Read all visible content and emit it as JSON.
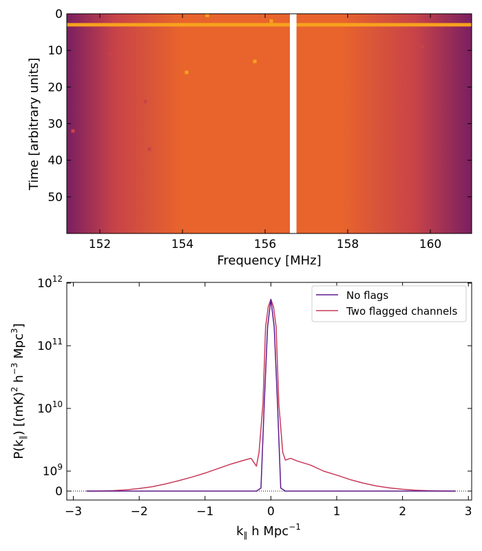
{
  "chart_data": [
    {
      "type": "heatmap",
      "xlabel": "Frequency [MHz]",
      "ylabel": "Time [arbitrary units]",
      "xlim": [
        151.2,
        161.0
      ],
      "ylim": [
        60,
        0
      ],
      "xticks": [
        "152",
        "154",
        "156",
        "158",
        "160"
      ],
      "yticks": [
        "0",
        "10",
        "20",
        "30",
        "40",
        "50"
      ],
      "y_inverted": true,
      "colormap": "inferno",
      "colors": {
        "edge": "#7a1f61",
        "mid": "#c84348",
        "center": "#e8642c",
        "bright": "#f7a21d",
        "flag": "#ffffff"
      },
      "flagged_channel_mhz": [
        156.6,
        156.76
      ],
      "bright_row_time": 3,
      "hot_pixels": [
        {
          "freq": 154.6,
          "time": 0.0
        },
        {
          "freq": 156.15,
          "time": 2.0
        },
        {
          "freq": 152.25,
          "time": 11.0
        },
        {
          "freq": 159.8,
          "time": 9.0
        },
        {
          "freq": 155.75,
          "time": 13.0
        },
        {
          "freq": 154.1,
          "time": 16.0
        },
        {
          "freq": 153.1,
          "time": 24.0
        },
        {
          "freq": 151.35,
          "time": 32.0
        },
        {
          "freq": 153.2,
          "time": 37.0
        }
      ]
    },
    {
      "type": "line",
      "xlabel": "k",
      "xlabel_sub": "∥",
      "xlabel_rest": " h Mpc",
      "xlabel_sup": "−1",
      "ylabel_parts": [
        "P(k",
        "∥",
        ") [(mK)",
        "2",
        " h",
        "−3",
        " Mpc",
        "3",
        "]"
      ],
      "xlim": [
        -3.1,
        3.05
      ],
      "xticks": [
        "−3",
        "−2",
        "−1",
        "0",
        "1",
        "2",
        "3"
      ],
      "yscale": "symlog",
      "yticks": [
        {
          "base": "0",
          "exp": ""
        },
        {
          "base": "10",
          "exp": "9"
        },
        {
          "base": "10",
          "exp": "10"
        },
        {
          "base": "10",
          "exp": "11"
        },
        {
          "base": "10",
          "exp": "12"
        }
      ],
      "legend_position": "top-right",
      "series": [
        {
          "name": "No flags",
          "color": "#5c1a8c",
          "x": [
            -2.8,
            -2.0,
            -1.0,
            -0.3,
            -0.22,
            -0.15,
            -0.1,
            -0.05,
            0.0,
            0.05,
            0.1,
            0.15,
            0.22,
            0.3,
            1.0,
            2.0,
            2.8
          ],
          "y": [
            0,
            0,
            0,
            0,
            0,
            150000000.0,
            12000000000.0,
            200000000000.0,
            550000000000.0,
            200000000000.0,
            12000000000.0,
            150000000.0,
            0,
            0,
            0,
            0,
            0
          ]
        },
        {
          "name": "Two flagged channels",
          "color": "#c73a5a",
          "x": [
            -2.8,
            -2.6,
            -2.4,
            -2.2,
            -2.0,
            -1.8,
            -1.6,
            -1.4,
            -1.2,
            -1.0,
            -0.8,
            -0.6,
            -0.4,
            -0.3,
            -0.22,
            -0.18,
            -0.12,
            -0.08,
            -0.04,
            0.0,
            0.04,
            0.08,
            0.12,
            0.18,
            0.22,
            0.3,
            0.4,
            0.6,
            0.8,
            1.0,
            1.2,
            1.4,
            1.6,
            1.8,
            2.0,
            2.2,
            2.4,
            2.6,
            2.8
          ],
          "y": [
            0,
            3000000.0,
            20000000.0,
            60000000.0,
            130000000.0,
            220000000.0,
            360000000.0,
            520000000.0,
            700000000.0,
            900000000.0,
            1100000000.0,
            1300000000.0,
            1500000000.0,
            1600000000.0,
            1200000000.0,
            2000000000.0,
            12000000000.0,
            200000000000.0,
            420000000000.0,
            550000000000.0,
            420000000000.0,
            200000000000.0,
            12000000000.0,
            2000000000.0,
            1500000000.0,
            1600000000.0,
            1450000000.0,
            1250000000.0,
            1000000000.0,
            800000000.0,
            580000000.0,
            400000000.0,
            260000000.0,
            160000000.0,
            90000000.0,
            45000000.0,
            16000000.0,
            3000000.0,
            0
          ]
        }
      ]
    }
  ]
}
